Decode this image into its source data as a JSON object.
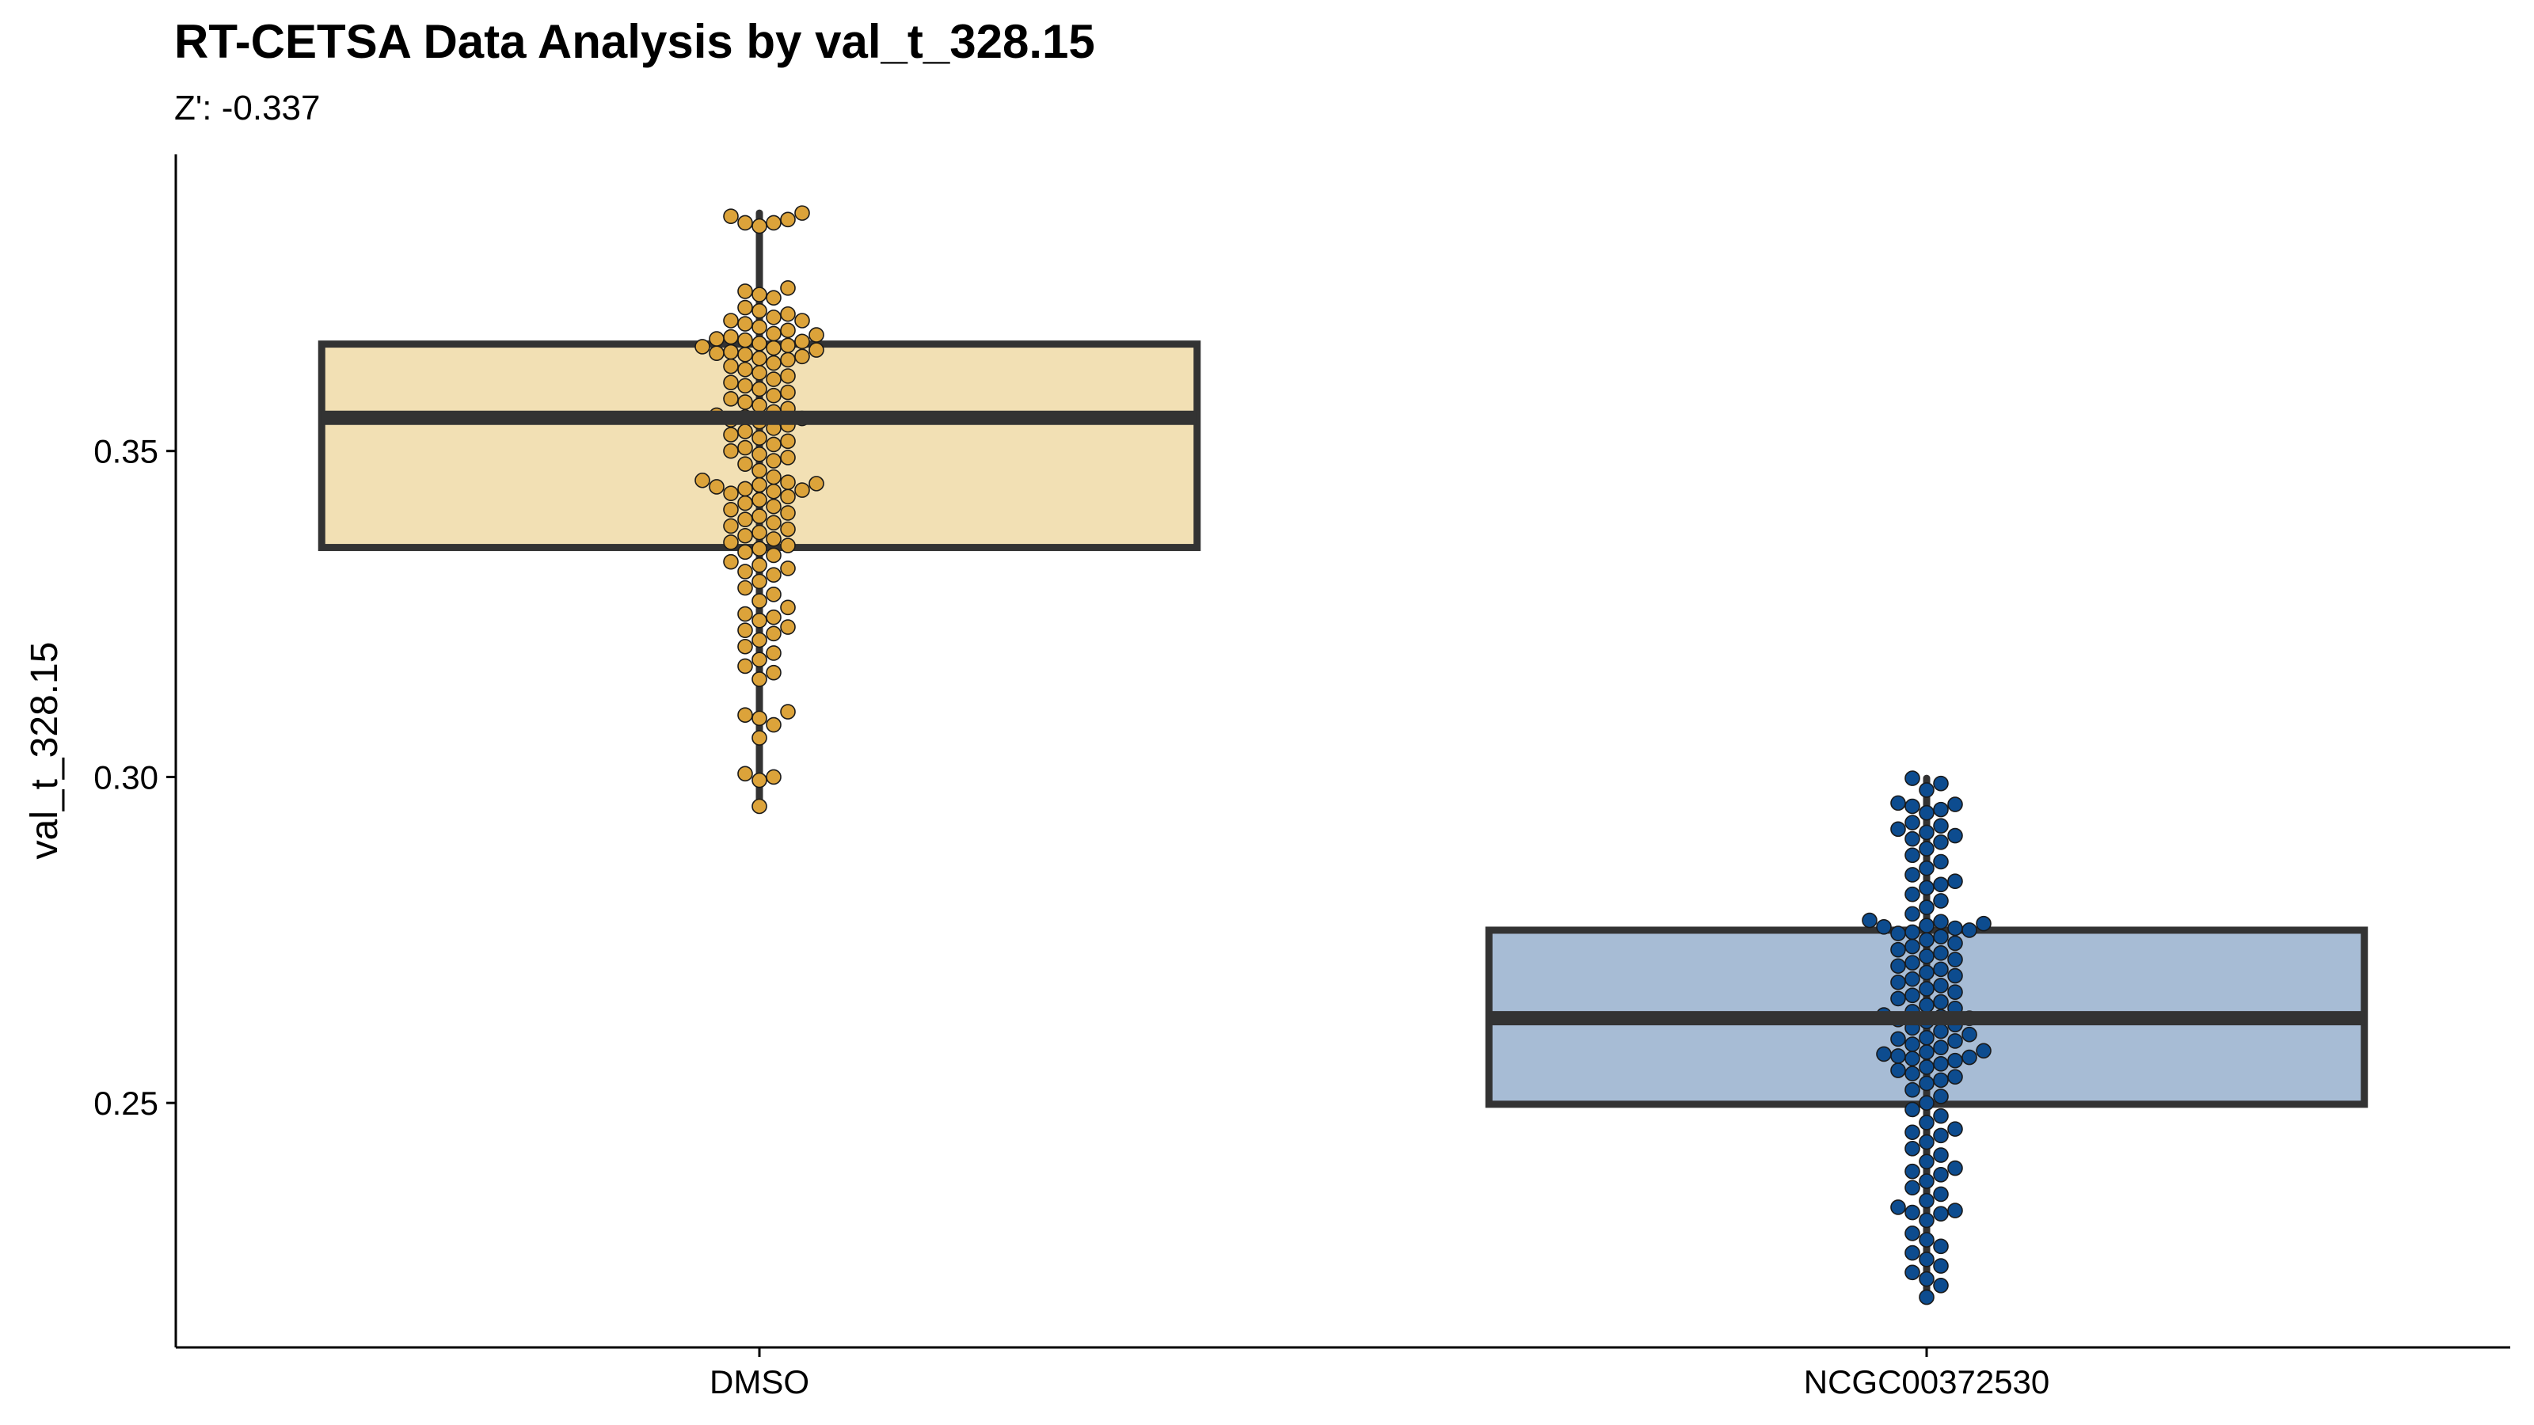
{
  "chart_data": {
    "type": "boxplot",
    "title": "RT-CETSA Data Analysis by val_t_328.15",
    "subtitle": "Z': -0.337",
    "xlabel": "",
    "ylabel": "val_t_328.15",
    "ylim": [
      0.2125,
      0.3955
    ],
    "yticks": [
      0.25,
      0.3,
      0.35
    ],
    "ytick_labels": [
      "0.25",
      "0.30",
      "0.35"
    ],
    "categories": [
      "DMSO",
      "NCGC00372530"
    ],
    "groups": [
      {
        "name": "DMSO",
        "box_fill": "#f2e0b4",
        "point_fill": "#dca33a",
        "q1": 0.3352,
        "median": 0.3551,
        "q3": 0.3664,
        "whisker_low": 0.2955,
        "whisker_high": 0.3865,
        "points": [
          0.3865,
          0.386,
          0.3855,
          0.385,
          0.3845,
          0.385,
          0.375,
          0.3745,
          0.374,
          0.3735,
          0.372,
          0.3715,
          0.371,
          0.3705,
          0.37,
          0.37,
          0.3695,
          0.369,
          0.3685,
          0.368,
          0.3678,
          0.3675,
          0.3672,
          0.367,
          0.3668,
          0.3665,
          0.3662,
          0.366,
          0.3658,
          0.3655,
          0.3652,
          0.365,
          0.3648,
          0.3645,
          0.3642,
          0.364,
          0.3635,
          0.363,
          0.3625,
          0.362,
          0.3615,
          0.361,
          0.3605,
          0.36,
          0.3595,
          0.359,
          0.3585,
          0.358,
          0.3575,
          0.357,
          0.3565,
          0.356,
          0.3555,
          0.3552,
          0.355,
          0.3548,
          0.3545,
          0.354,
          0.3535,
          0.353,
          0.3525,
          0.352,
          0.3515,
          0.351,
          0.3505,
          0.35,
          0.3495,
          0.349,
          0.3485,
          0.348,
          0.347,
          0.346,
          0.3455,
          0.3452,
          0.345,
          0.3448,
          0.3445,
          0.3442,
          0.344,
          0.3438,
          0.3435,
          0.343,
          0.3425,
          0.342,
          0.3415,
          0.341,
          0.3405,
          0.34,
          0.3395,
          0.339,
          0.3385,
          0.338,
          0.3375,
          0.337,
          0.3365,
          0.336,
          0.3355,
          0.335,
          0.3345,
          0.334,
          0.333,
          0.3325,
          0.332,
          0.3315,
          0.331,
          0.33,
          0.329,
          0.328,
          0.327,
          0.326,
          0.325,
          0.3245,
          0.324,
          0.323,
          0.3225,
          0.322,
          0.321,
          0.32,
          0.319,
          0.318,
          0.317,
          0.316,
          0.315,
          0.31,
          0.3095,
          0.309,
          0.308,
          0.306,
          0.3005,
          0.3,
          0.2995,
          0.2955
        ]
      },
      {
        "name": "NCGC00372530",
        "box_fill": "#a7bcd5",
        "point_fill": "#0d4c8f",
        "q1": 0.2498,
        "median": 0.263,
        "q3": 0.2765,
        "whisker_low": 0.2202,
        "whisker_high": 0.2998,
        "points": [
          0.2998,
          0.299,
          0.298,
          0.296,
          0.2958,
          0.2955,
          0.295,
          0.2945,
          0.293,
          0.2925,
          0.292,
          0.2915,
          0.291,
          0.2905,
          0.29,
          0.289,
          0.288,
          0.287,
          0.286,
          0.285,
          0.284,
          0.2835,
          0.283,
          0.282,
          0.281,
          0.28,
          0.279,
          0.278,
          0.2778,
          0.2775,
          0.2772,
          0.277,
          0.2768,
          0.2765,
          0.2762,
          0.276,
          0.2755,
          0.275,
          0.2745,
          0.274,
          0.2735,
          0.273,
          0.2725,
          0.272,
          0.2715,
          0.271,
          0.2705,
          0.27,
          0.2695,
          0.269,
          0.2685,
          0.268,
          0.2675,
          0.267,
          0.2665,
          0.266,
          0.2655,
          0.265,
          0.2645,
          0.264,
          0.2635,
          0.2632,
          0.263,
          0.2628,
          0.2625,
          0.262,
          0.2615,
          0.261,
          0.2605,
          0.26,
          0.2598,
          0.2595,
          0.259,
          0.2585,
          0.258,
          0.2578,
          0.2575,
          0.2572,
          0.257,
          0.2568,
          0.2565,
          0.256,
          0.2555,
          0.255,
          0.2545,
          0.254,
          0.2535,
          0.253,
          0.252,
          0.251,
          0.25,
          0.249,
          0.248,
          0.247,
          0.246,
          0.2455,
          0.245,
          0.244,
          0.243,
          0.242,
          0.241,
          0.24,
          0.2395,
          0.239,
          0.238,
          0.237,
          0.236,
          0.235,
          0.234,
          0.2335,
          0.2332,
          0.233,
          0.232,
          0.23,
          0.229,
          0.228,
          0.227,
          0.226,
          0.225,
          0.224,
          0.223,
          0.222,
          0.2202
        ]
      }
    ]
  }
}
